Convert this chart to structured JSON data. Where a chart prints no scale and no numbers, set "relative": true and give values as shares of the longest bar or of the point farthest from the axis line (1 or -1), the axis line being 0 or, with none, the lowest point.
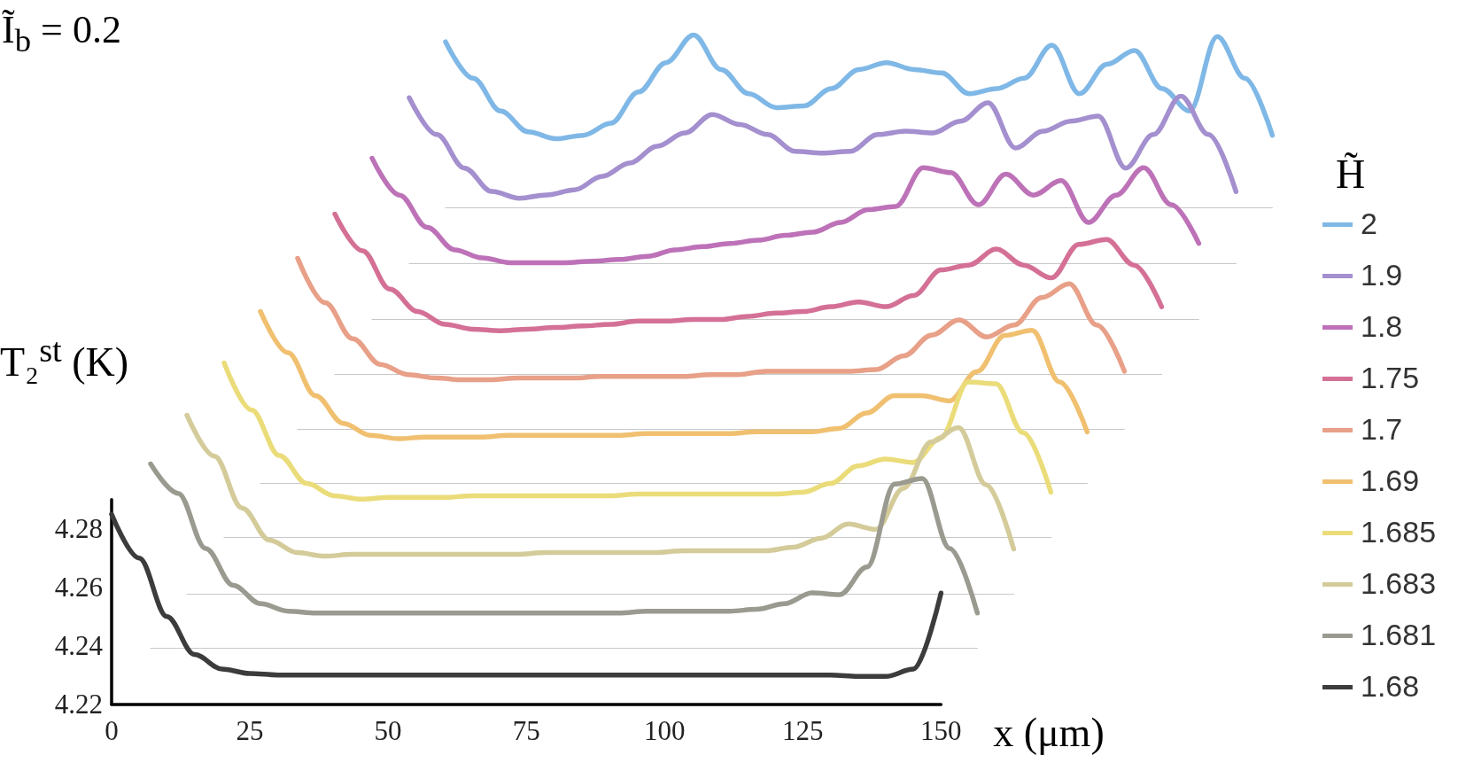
{
  "chart_data": [
    {
      "type": "line",
      "relative": true,
      "legend": "right",
      "legend_title": "H̃",
      "categories": [
        null,
        null,
        null,
        null,
        null,
        null,
        null,
        null,
        null,
        null,
        null,
        null,
        null,
        null,
        null,
        null,
        null,
        null,
        null,
        null,
        null,
        null,
        null,
        null,
        null,
        null,
        null,
        null,
        null,
        null,
        null
      ],
      "series": [
        {
          "name": "2",
          "color": "#7fb8e6",
          "values": [
            0.96,
            0.75,
            0.56,
            0.44,
            0.4,
            0.42,
            0.49,
            0.67,
            0.84,
            1,
            0.8,
            0.66,
            0.58,
            0.59,
            0.69,
            0.8,
            0.84,
            0.8,
            0.78,
            0.66,
            0.69,
            0.75,
            0.94,
            0.66,
            0.83,
            0.91,
            0.69,
            0.56,
            0.99,
            0.75,
            0.42
          ]
        }
      ]
    },
    {
      "type": "line",
      "relative": true,
      "legend": "right",
      "categories": [
        null,
        null,
        null,
        null,
        null,
        null,
        null,
        null,
        null,
        null,
        null,
        null,
        null,
        null,
        null,
        null,
        null,
        null,
        null,
        null,
        null,
        null,
        null,
        null,
        null,
        null,
        null,
        null,
        null,
        null,
        null
      ],
      "series": [
        {
          "name": "1.9",
          "color": "#a48fcf",
          "values": [
            0.99,
            0.77,
            0.57,
            0.43,
            0.39,
            0.41,
            0.44,
            0.52,
            0.6,
            0.7,
            0.78,
            0.89,
            0.83,
            0.77,
            0.67,
            0.66,
            0.67,
            0.77,
            0.79,
            0.78,
            0.85,
            0.96,
            0.69,
            0.79,
            0.85,
            0.88,
            0.57,
            0.77,
            1,
            0.77,
            0.43
          ]
        }
      ]
    },
    {
      "type": "line",
      "relative": true,
      "legend": "right",
      "categories": [
        null,
        null,
        null,
        null,
        null,
        null,
        null,
        null,
        null,
        null,
        null,
        null,
        null,
        null,
        null,
        null,
        null,
        null,
        null,
        null,
        null,
        null,
        null,
        null,
        null,
        null,
        null,
        null,
        null,
        null,
        null
      ],
      "series": [
        {
          "name": "1.8",
          "color": "#bd72b8",
          "values": [
            1,
            0.77,
            0.57,
            0.43,
            0.38,
            0.35,
            0.35,
            0.35,
            0.36,
            0.37,
            0.39,
            0.43,
            0.45,
            0.47,
            0.49,
            0.52,
            0.54,
            0.6,
            0.68,
            0.7,
            0.94,
            0.91,
            0.71,
            0.9,
            0.77,
            0.86,
            0.6,
            0.77,
            0.94,
            0.71,
            0.47
          ]
        }
      ]
    },
    {
      "type": "line",
      "relative": true,
      "legend": "right",
      "categories": [
        null,
        null,
        null,
        null,
        null,
        null,
        null,
        null,
        null,
        null,
        null,
        null,
        null,
        null,
        null,
        null,
        null,
        null,
        null,
        null,
        null,
        null,
        null,
        null,
        null,
        null,
        null,
        null,
        null,
        null,
        null
      ],
      "series": [
        {
          "name": "1.75",
          "color": "#d47096",
          "values": [
            1,
            0.77,
            0.53,
            0.39,
            0.31,
            0.28,
            0.27,
            0.28,
            0.29,
            0.3,
            0.31,
            0.33,
            0.33,
            0.34,
            0.34,
            0.36,
            0.38,
            0.39,
            0.42,
            0.45,
            0.42,
            0.49,
            0.65,
            0.68,
            0.78,
            0.68,
            0.6,
            0.81,
            0.84,
            0.68,
            0.42
          ]
        }
      ]
    },
    {
      "type": "line",
      "relative": true,
      "legend": "right",
      "categories": [
        null,
        null,
        null,
        null,
        null,
        null,
        null,
        null,
        null,
        null,
        null,
        null,
        null,
        null,
        null,
        null,
        null,
        null,
        null,
        null,
        null,
        null,
        null,
        null,
        null,
        null,
        null,
        null,
        null,
        null,
        null
      ],
      "series": [
        {
          "name": "1.7",
          "color": "#e8a088",
          "values": [
            1,
            0.74,
            0.53,
            0.38,
            0.32,
            0.3,
            0.29,
            0.29,
            0.3,
            0.3,
            0.3,
            0.31,
            0.31,
            0.31,
            0.31,
            0.32,
            0.32,
            0.34,
            0.34,
            0.34,
            0.34,
            0.35,
            0.43,
            0.55,
            0.64,
            0.54,
            0.61,
            0.77,
            0.85,
            0.61,
            0.34
          ]
        }
      ]
    },
    {
      "type": "line",
      "relative": true,
      "legend": "right",
      "categories": [
        null,
        null,
        null,
        null,
        null,
        null,
        null,
        null,
        null,
        null,
        null,
        null,
        null,
        null,
        null,
        null,
        null,
        null,
        null,
        null,
        null,
        null,
        null,
        null,
        null,
        null,
        null,
        null,
        null,
        null,
        null
      ],
      "series": [
        {
          "name": "1.69",
          "color": "#f0c070",
          "values": [
            1,
            0.76,
            0.51,
            0.35,
            0.28,
            0.26,
            0.27,
            0.27,
            0.27,
            0.28,
            0.28,
            0.28,
            0.28,
            0.28,
            0.29,
            0.29,
            0.29,
            0.29,
            0.3,
            0.3,
            0.3,
            0.32,
            0.41,
            0.51,
            0.51,
            0.48,
            0.65,
            0.86,
            0.89,
            0.59,
            0.3
          ]
        }
      ]
    },
    {
      "type": "line",
      "relative": true,
      "legend": "right",
      "categories": [
        null,
        null,
        null,
        null,
        null,
        null,
        null,
        null,
        null,
        null,
        null,
        null,
        null,
        null,
        null,
        null,
        null,
        null,
        null,
        null,
        null,
        null,
        null,
        null,
        null,
        null,
        null,
        null,
        null,
        null,
        null
      ],
      "series": [
        {
          "name": "1.685",
          "color": "#ebdc7a",
          "values": [
            1,
            0.73,
            0.47,
            0.31,
            0.24,
            0.22,
            0.23,
            0.23,
            0.23,
            0.24,
            0.24,
            0.24,
            0.24,
            0.24,
            0.24,
            0.25,
            0.25,
            0.25,
            0.25,
            0.25,
            0.25,
            0.26,
            0.31,
            0.41,
            0.45,
            0.43,
            0.57,
            0.89,
            0.88,
            0.6,
            0.26
          ]
        }
      ]
    },
    {
      "type": "line",
      "relative": true,
      "legend": "right",
      "categories": [
        null,
        null,
        null,
        null,
        null,
        null,
        null,
        null,
        null,
        null,
        null,
        null,
        null,
        null,
        null,
        null,
        null,
        null,
        null,
        null,
        null,
        null,
        null,
        null,
        null,
        null,
        null,
        null,
        null,
        null,
        null
      ],
      "series": [
        {
          "name": "1.683",
          "color": "#d4cb9a",
          "values": [
            1,
            0.77,
            0.48,
            0.3,
            0.23,
            0.21,
            0.22,
            0.22,
            0.22,
            0.22,
            0.22,
            0.22,
            0.22,
            0.23,
            0.23,
            0.23,
            0.23,
            0.23,
            0.24,
            0.24,
            0.24,
            0.24,
            0.26,
            0.31,
            0.39,
            0.36,
            0.59,
            0.85,
            0.93,
            0.61,
            0.25
          ]
        }
      ]
    },
    {
      "type": "line",
      "relative": true,
      "legend": "right",
      "categories": [
        null,
        null,
        null,
        null,
        null,
        null,
        null,
        null,
        null,
        null,
        null,
        null,
        null,
        null,
        null,
        null,
        null,
        null,
        null,
        null,
        null,
        null,
        null,
        null,
        null,
        null,
        null,
        null,
        null,
        null,
        null
      ],
      "series": [
        {
          "name": "1.681",
          "color": "#9a9a90",
          "values": [
            1,
            0.84,
            0.54,
            0.34,
            0.24,
            0.2,
            0.19,
            0.19,
            0.19,
            0.19,
            0.19,
            0.19,
            0.19,
            0.19,
            0.19,
            0.19,
            0.19,
            0.19,
            0.2,
            0.2,
            0.2,
            0.2,
            0.21,
            0.24,
            0.3,
            0.29,
            0.44,
            0.89,
            0.92,
            0.54,
            0.19
          ]
        }
      ]
    },
    {
      "type": "line",
      "legend": "right",
      "annotations": [
        "Ĩ$_{b}$ = 0.2"
      ],
      "xlabel": "x (μm)",
      "ylabel": "T₂$^{st}$ (K)",
      "x": [
        0,
        5,
        10,
        15,
        20,
        25,
        30,
        35,
        40,
        45,
        50,
        55,
        60,
        65,
        70,
        75,
        80,
        85,
        90,
        95,
        100,
        105,
        110,
        115,
        120,
        125,
        130,
        135,
        140,
        145,
        150
      ],
      "xlim": [
        0,
        150
      ],
      "xticks": [
        0,
        25,
        50,
        75,
        100,
        125,
        150
      ],
      "ylim": [
        4.22,
        4.29
      ],
      "yticks": [
        4.22,
        4.24,
        4.26,
        4.28
      ],
      "series": [
        {
          "name": "1.68",
          "color": "#3c3c3c",
          "values": [
            4.285,
            4.27,
            4.25,
            4.237,
            4.232,
            4.2305,
            4.23,
            4.23,
            4.23,
            4.23,
            4.23,
            4.23,
            4.23,
            4.23,
            4.23,
            4.23,
            4.23,
            4.23,
            4.23,
            4.23,
            4.23,
            4.23,
            4.23,
            4.23,
            4.23,
            4.23,
            4.23,
            4.2295,
            4.2295,
            4.232,
            4.258
          ]
        }
      ]
    }
  ]
}
